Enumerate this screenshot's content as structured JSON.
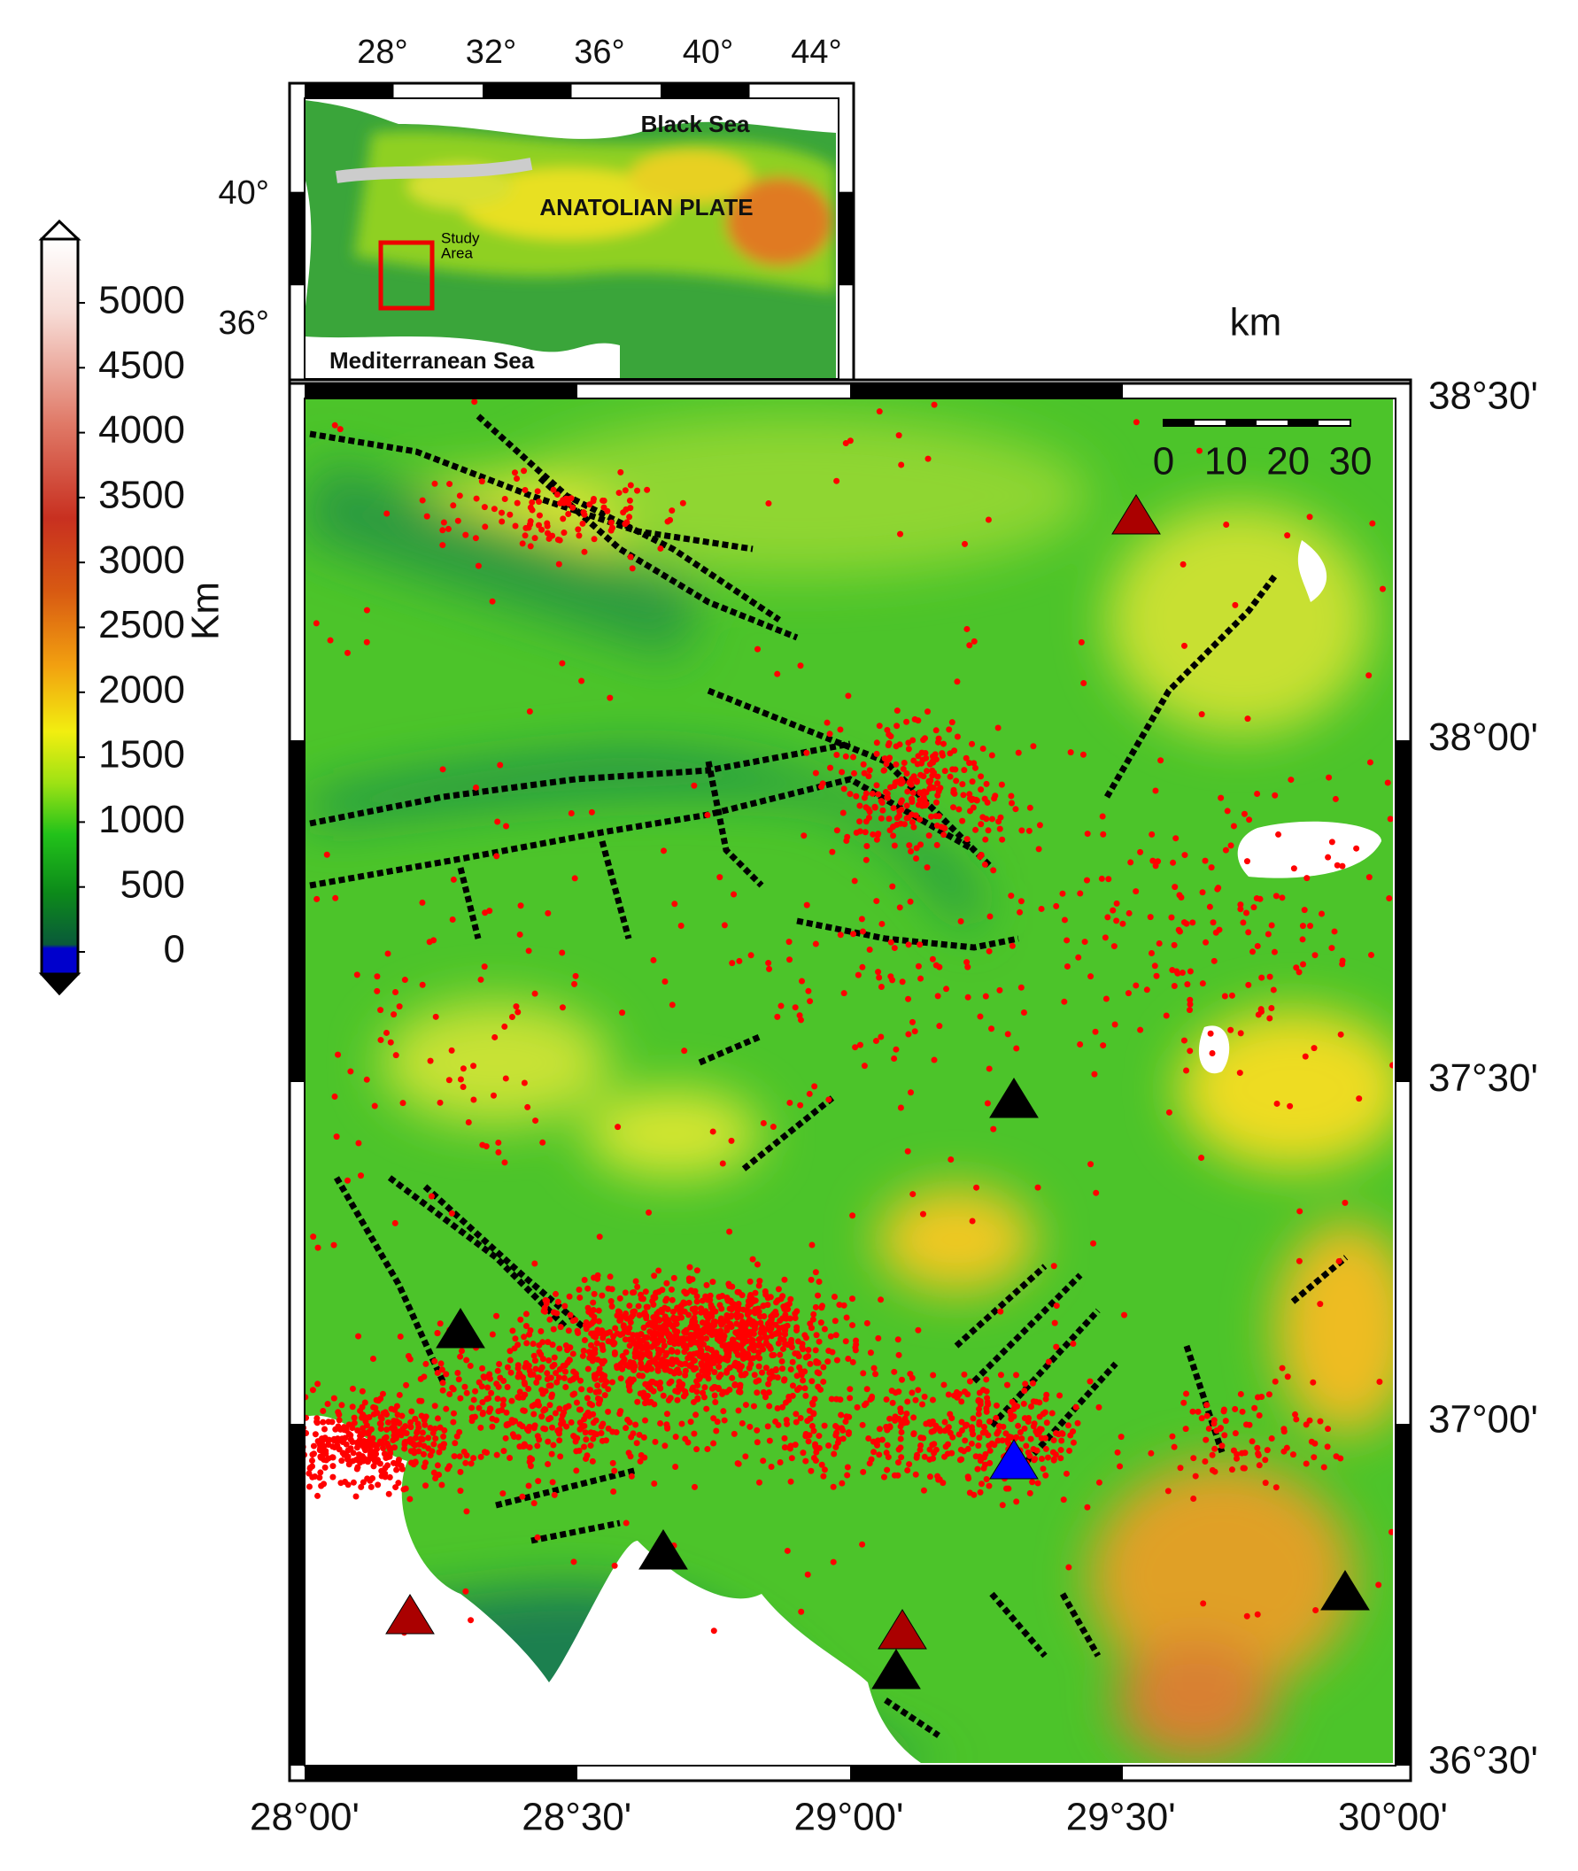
{
  "inset": {
    "x_labels": [
      "28°",
      "32°",
      "36°",
      "40°",
      "44°"
    ],
    "y_labels": [
      "40°",
      "36°"
    ],
    "black_sea": "Black Sea",
    "plate": "ANATOLIAN PLATE",
    "study_area": [
      "Study",
      "Area"
    ],
    "med_sea": "Mediterranean Sea"
  },
  "colorbar": {
    "label": "Km",
    "ticks": [
      5000,
      4500,
      4000,
      3500,
      3000,
      2500,
      2000,
      1500,
      1000,
      500,
      0
    ]
  },
  "scale_bar": {
    "unit": "km",
    "ticks": [
      0,
      10,
      20,
      30
    ]
  },
  "map": {
    "x_labels": [
      "28°00'",
      "28°30'",
      "29°00'",
      "29°30'",
      "30°00'"
    ],
    "y_labels": [
      "38°30'",
      "38°00'",
      "37°30'",
      "37°00'",
      "36°30'"
    ]
  }
}
